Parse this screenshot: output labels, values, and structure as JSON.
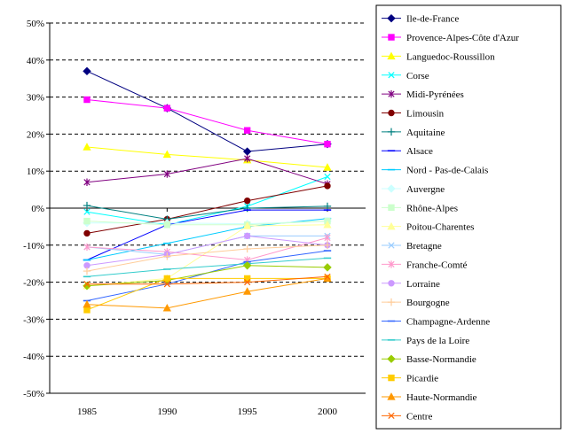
{
  "chart_data": {
    "type": "line",
    "title": "",
    "xlabel": "",
    "ylabel": "",
    "x": [
      1985,
      1990,
      1995,
      2000
    ],
    "x_tick_labels": [
      "1985",
      "1990",
      "1995",
      "2000"
    ],
    "ylim": [
      -50,
      50
    ],
    "y_ticks": [
      50,
      40,
      30,
      20,
      10,
      0,
      -10,
      -20,
      -30,
      -40,
      -50
    ],
    "y_tick_labels": [
      "50%",
      "40%",
      "30%",
      "20%",
      "10%",
      "0%",
      "-10%",
      "-20%",
      "-30%",
      "-40%",
      "-50%"
    ],
    "grid": "horizontal dashed",
    "legend_position": "right",
    "series": [
      {
        "name": "Ile-de-France",
        "color": "#000080",
        "marker": "diamond",
        "values": [
          37.0,
          27.0,
          15.3,
          17.3
        ]
      },
      {
        "name": "Provence-Alpes-Côte d'Azur",
        "color": "#ff00ff",
        "marker": "square",
        "values": [
          29.3,
          27.0,
          21.0,
          17.3
        ]
      },
      {
        "name": "Languedoc-Roussillon",
        "color": "#ffff00",
        "marker": "triangle",
        "values": [
          16.5,
          14.5,
          13.0,
          11.0
        ]
      },
      {
        "name": "Corse",
        "color": "#00ffff",
        "marker": "x",
        "values": [
          -1.0,
          -4.5,
          0.5,
          8.5
        ]
      },
      {
        "name": "Midi-Pyrénées",
        "color": "#800080",
        "marker": "star",
        "values": [
          7.0,
          9.2,
          13.4,
          6.5
        ]
      },
      {
        "name": "Limousin",
        "color": "#800000",
        "marker": "circle",
        "values": [
          -6.8,
          -3.0,
          2.0,
          6.0
        ]
      },
      {
        "name": "Aquitaine",
        "color": "#008080",
        "marker": "plus",
        "values": [
          0.7,
          -3.0,
          0.0,
          0.5
        ]
      },
      {
        "name": "Alsace",
        "color": "#0000ff",
        "marker": "dash",
        "values": [
          -14.0,
          -4.5,
          -0.5,
          -0.5
        ]
      },
      {
        "name": "Nord - Pas-de-Calais",
        "color": "#00ccff",
        "marker": "dash",
        "values": [
          -14.0,
          -9.5,
          -5.0,
          -2.8
        ]
      },
      {
        "name": "Auvergne",
        "color": "#ccffff",
        "marker": "diamond",
        "values": [
          -4.0,
          -4.0,
          -4.2,
          -3.5
        ]
      },
      {
        "name": "Rhône-Alpes",
        "color": "#ccffcc",
        "marker": "square",
        "values": [
          -3.5,
          -4.5,
          -4.5,
          -3.5
        ]
      },
      {
        "name": "Poitou-Charentes",
        "color": "#ffff99",
        "marker": "triangle",
        "values": [
          -21.0,
          -19.0,
          -4.8,
          -4.5
        ]
      },
      {
        "name": "Bretagne",
        "color": "#99ccff",
        "marker": "x",
        "values": [
          -10.5,
          -12.5,
          -7.5,
          -7.5
        ]
      },
      {
        "name": "Franche-Comté",
        "color": "#ff99cc",
        "marker": "star",
        "values": [
          -10.5,
          -11.8,
          -14.0,
          -8.0
        ]
      },
      {
        "name": "Lorraine",
        "color": "#cc99ff",
        "marker": "circle",
        "values": [
          -15.5,
          -12.5,
          -7.5,
          -10.0
        ]
      },
      {
        "name": "Bourgogne",
        "color": "#ffcc99",
        "marker": "plus",
        "values": [
          -17.0,
          -13.0,
          -11.0,
          -10.0
        ]
      },
      {
        "name": "Champagne-Ardenne",
        "color": "#3366ff",
        "marker": "dash",
        "values": [
          -25.0,
          -20.5,
          -14.5,
          -11.5
        ]
      },
      {
        "name": "Pays de la Loire",
        "color": "#33cccc",
        "marker": "dash",
        "values": [
          -18.5,
          -16.5,
          -15.0,
          -13.5
        ]
      },
      {
        "name": "Basse-Normandie",
        "color": "#99cc00",
        "marker": "diamond",
        "values": [
          -21.0,
          -19.5,
          -15.5,
          -16.0
        ]
      },
      {
        "name": "Picardie",
        "color": "#ffcc00",
        "marker": "square",
        "values": [
          -27.5,
          -19.0,
          -19.0,
          -19.0
        ]
      },
      {
        "name": "Haute-Normandie",
        "color": "#ff9900",
        "marker": "triangle",
        "values": [
          -26.0,
          -27.0,
          -22.5,
          -19.0
        ]
      },
      {
        "name": "Centre",
        "color": "#ff6600",
        "marker": "x",
        "values": [
          -20.5,
          -20.5,
          -20.0,
          -18.5
        ]
      }
    ]
  }
}
